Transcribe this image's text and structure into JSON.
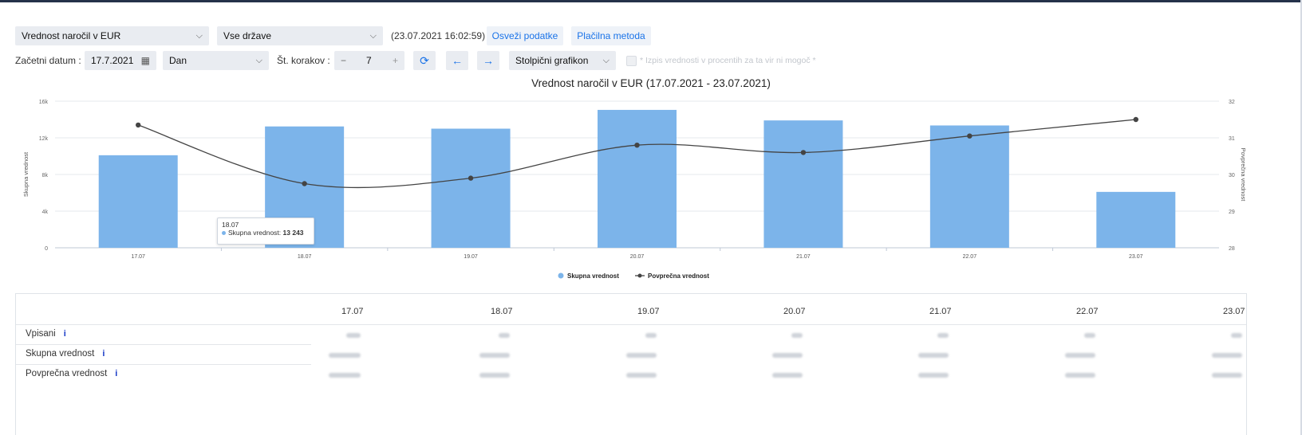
{
  "toolbar": {
    "metric_select": "Vrednost naročil v EUR",
    "country_select": "Vse države",
    "timestamp": "(23.07.2021 16:02:59)",
    "refresh_label": "Osveži podatke",
    "payment_label": "Plačilna metoda",
    "start_date_label": "Začetni datum :",
    "start_date_value": "17.7.2021",
    "period_select": "Dan",
    "steps_label": "Št. korakov :",
    "steps_minus": "−",
    "steps_value": "7",
    "steps_plus": "+",
    "chart_type_select": "Stolpični grafikon",
    "percent_checkbox_label": "* Izpis vrednosti v procentih za ta vir ni mogoč *"
  },
  "chart_data": {
    "type": "bar",
    "title": "Vrednost naročil v EUR (17.07.2021 - 23.07.2021)",
    "categories": [
      "17.07",
      "18.07",
      "19.07",
      "20.07",
      "21.07",
      "22.07",
      "23.07"
    ],
    "ylabel": "Skupna vrednost",
    "y2label": "Povprečna vrednost",
    "ylim": [
      0,
      16000
    ],
    "y2lim": [
      28,
      32
    ],
    "yticks": [
      "0",
      "4k",
      "8k",
      "12k",
      "16k"
    ],
    "y2ticks": [
      "28",
      "29",
      "30",
      "31",
      "32"
    ],
    "series": [
      {
        "name": "Skupna vrednost",
        "type": "bar",
        "axis": "left",
        "color": "#7cb4ea",
        "values": [
          10100,
          13243,
          13000,
          15050,
          13900,
          13350,
          6100
        ]
      },
      {
        "name": "Povprečna vrednost",
        "type": "line",
        "axis": "right",
        "color": "#444444",
        "values": [
          31.35,
          29.75,
          29.9,
          30.8,
          30.6,
          31.05,
          31.5
        ]
      }
    ],
    "legend_position": "bottom-center",
    "grid": true,
    "tooltip": {
      "date": "18.07",
      "label": "Skupna vrednost:",
      "value": "13 243"
    }
  },
  "table": {
    "columns": [
      "17.07",
      "18.07",
      "19.07",
      "20.07",
      "21.07",
      "22.07",
      "23.07"
    ],
    "rows": [
      {
        "label": "Vpisani",
        "info": "i"
      },
      {
        "label": "Skupna vrednost",
        "info": "i"
      },
      {
        "label": "Povprečna vrednost",
        "info": "i"
      }
    ]
  }
}
